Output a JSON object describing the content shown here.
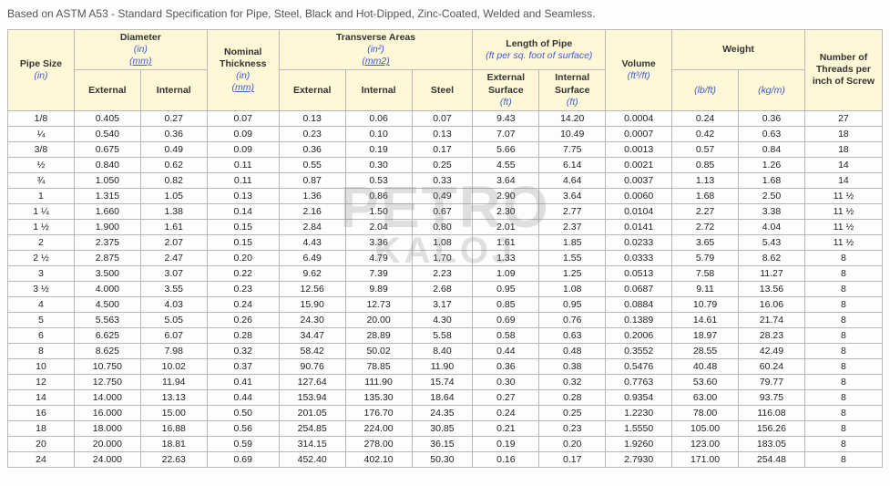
{
  "caption": "Based on ASTM A53 - Standard Specification for Pipe, Steel, Black and Hot-Dipped, Zinc-Coated, Welded and Seamless.",
  "watermark_top": "PETRO",
  "watermark_bottom": "KALOJ",
  "headers": {
    "pipe_size": "Pipe Size",
    "pipe_size_unit": "(in)",
    "diameter": "Diameter",
    "diameter_unit": "(in)",
    "diameter_unit2": "(mm)",
    "nominal_thickness": "Nominal Thickness",
    "nominal_thickness_unit": "(in)",
    "nominal_thickness_unit2": "(mm)",
    "transverse": "Transverse Areas",
    "transverse_unit": "(in²)",
    "transverse_unit2": "(mm2)",
    "length": "Length of Pipe",
    "length_sub": "(ft per sq. foot of surface)",
    "volume": "Volume",
    "volume_unit": "(ft³/ft)",
    "weight": "Weight",
    "threads": "Number of Threads per inch of Screw",
    "external": "External",
    "internal": "Internal",
    "steel": "Steel",
    "ext_surface": "External Surface",
    "int_surface": "Internal Surface",
    "ft": "(ft)",
    "lbft": "(lb/ft)",
    "kgm": "(kg/m)"
  },
  "rows": [
    [
      "1/8",
      "0.405",
      "0.27",
      "0.07",
      "0.13",
      "0.06",
      "0.07",
      "9.43",
      "14.20",
      "0.0004",
      "0.24",
      "0.36",
      "27"
    ],
    [
      "¼",
      "0.540",
      "0.36",
      "0.09",
      "0.23",
      "0.10",
      "0.13",
      "7.07",
      "10.49",
      "0.0007",
      "0.42",
      "0.63",
      "18"
    ],
    [
      "3/8",
      "0.675",
      "0.49",
      "0.09",
      "0.36",
      "0.19",
      "0.17",
      "5.66",
      "7.75",
      "0.0013",
      "0.57",
      "0.84",
      "18"
    ],
    [
      "½",
      "0.840",
      "0.62",
      "0.11",
      "0.55",
      "0.30",
      "0.25",
      "4.55",
      "6.14",
      "0.0021",
      "0.85",
      "1.26",
      "14"
    ],
    [
      "¾",
      "1.050",
      "0.82",
      "0.11",
      "0.87",
      "0.53",
      "0.33",
      "3.64",
      "4.64",
      "0.0037",
      "1.13",
      "1.68",
      "14"
    ],
    [
      "1",
      "1.315",
      "1.05",
      "0.13",
      "1.36",
      "0.86",
      "0.49",
      "2.90",
      "3.64",
      "0.0060",
      "1.68",
      "2.50",
      "11 ½"
    ],
    [
      "1 ¼",
      "1.660",
      "1.38",
      "0.14",
      "2.16",
      "1.50",
      "0.67",
      "2.30",
      "2.77",
      "0.0104",
      "2.27",
      "3.38",
      "11 ½"
    ],
    [
      "1 ½",
      "1.900",
      "1.61",
      "0.15",
      "2.84",
      "2.04",
      "0.80",
      "2.01",
      "2.37",
      "0.0141",
      "2.72",
      "4.04",
      "11 ½"
    ],
    [
      "2",
      "2.375",
      "2.07",
      "0.15",
      "4.43",
      "3.36",
      "1.08",
      "1.61",
      "1.85",
      "0.0233",
      "3.65",
      "5.43",
      "11 ½"
    ],
    [
      "2 ½",
      "2.875",
      "2.47",
      "0.20",
      "6.49",
      "4.79",
      "1.70",
      "1.33",
      "1.55",
      "0.0333",
      "5.79",
      "8.62",
      "8"
    ],
    [
      "3",
      "3.500",
      "3.07",
      "0.22",
      "9.62",
      "7.39",
      "2.23",
      "1.09",
      "1.25",
      "0.0513",
      "7.58",
      "11.27",
      "8"
    ],
    [
      "3 ½",
      "4.000",
      "3.55",
      "0.23",
      "12.56",
      "9.89",
      "2.68",
      "0.95",
      "1.08",
      "0.0687",
      "9.11",
      "13.56",
      "8"
    ],
    [
      "4",
      "4.500",
      "4.03",
      "0.24",
      "15.90",
      "12.73",
      "3.17",
      "0.85",
      "0.95",
      "0.0884",
      "10.79",
      "16.06",
      "8"
    ],
    [
      "5",
      "5.563",
      "5.05",
      "0.26",
      "24.30",
      "20.00",
      "4.30",
      "0.69",
      "0.76",
      "0.1389",
      "14.61",
      "21.74",
      "8"
    ],
    [
      "6",
      "6.625",
      "6.07",
      "0.28",
      "34.47",
      "28.89",
      "5.58",
      "0.58",
      "0.63",
      "0.2006",
      "18.97",
      "28.23",
      "8"
    ],
    [
      "8",
      "8.625",
      "7.98",
      "0.32",
      "58.42",
      "50.02",
      "8.40",
      "0.44",
      "0.48",
      "0.3552",
      "28.55",
      "42.49",
      "8"
    ],
    [
      "10",
      "10.750",
      "10.02",
      "0.37",
      "90.76",
      "78.85",
      "11.90",
      "0.36",
      "0.38",
      "0.5476",
      "40.48",
      "60.24",
      "8"
    ],
    [
      "12",
      "12.750",
      "11.94",
      "0.41",
      "127.64",
      "111.90",
      "15.74",
      "0.30",
      "0.32",
      "0.7763",
      "53.60",
      "79.77",
      "8"
    ],
    [
      "14",
      "14.000",
      "13.13",
      "0.44",
      "153.94",
      "135.30",
      "18.64",
      "0.27",
      "0.28",
      "0.9354",
      "63.00",
      "93.75",
      "8"
    ],
    [
      "16",
      "16.000",
      "15.00",
      "0.50",
      "201.05",
      "176.70",
      "24.35",
      "0.24",
      "0.25",
      "1.2230",
      "78.00",
      "116.08",
      "8"
    ],
    [
      "18",
      "18.000",
      "16.88",
      "0.56",
      "254.85",
      "224.00",
      "30.85",
      "0.21",
      "0.23",
      "1.5550",
      "105.00",
      "156.26",
      "8"
    ],
    [
      "20",
      "20.000",
      "18.81",
      "0.59",
      "314.15",
      "278.00",
      "36.15",
      "0.19",
      "0.20",
      "1.9260",
      "123.00",
      "183.05",
      "8"
    ],
    [
      "24",
      "24.000",
      "22.63",
      "0.69",
      "452.40",
      "402.10",
      "50.30",
      "0.16",
      "0.17",
      "2.7930",
      "171.00",
      "254.48",
      "8"
    ]
  ],
  "col_widths": [
    "60",
    "60",
    "60",
    "65",
    "60",
    "60",
    "55",
    "60",
    "60",
    "60",
    "60",
    "60",
    "70"
  ]
}
